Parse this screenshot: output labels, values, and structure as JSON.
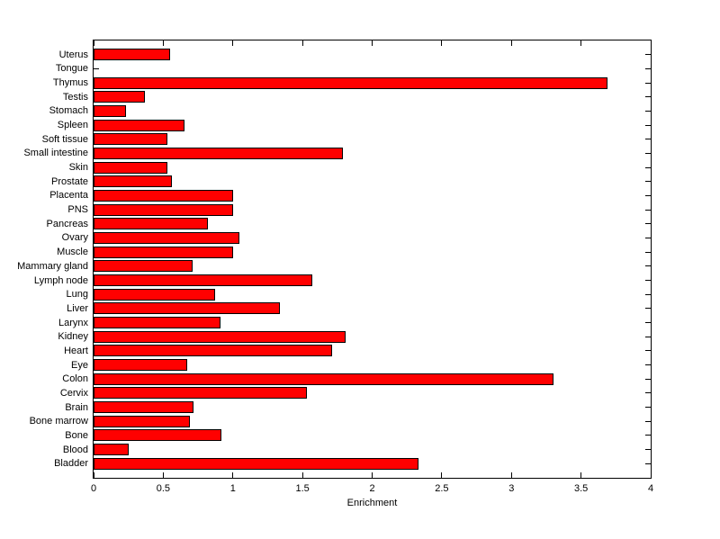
{
  "chart_data": {
    "type": "bar",
    "orientation": "horizontal",
    "title": "",
    "xlabel": "Enrichment",
    "ylabel": "",
    "xlim": [
      0,
      4
    ],
    "xticks": [
      0,
      0.5,
      1,
      1.5,
      2,
      2.5,
      3,
      3.5,
      4
    ],
    "xtick_labels": [
      "0",
      "0.5",
      "1",
      "1.5",
      "2",
      "2.5",
      "3",
      "3.5",
      "4"
    ],
    "categories": [
      "Uterus",
      "Tongue",
      "Thymus",
      "Testis",
      "Stomach",
      "Spleen",
      "Soft tissue",
      "Small intestine",
      "Skin",
      "Prostate",
      "Placenta",
      "PNS",
      "Pancreas",
      "Ovary",
      "Muscle",
      "Mammary gland",
      "Lymph node",
      "Lung",
      "Liver",
      "Larynx",
      "Kidney",
      "Heart",
      "Eye",
      "Colon",
      "Cervix",
      "Brain",
      "Bone marrow",
      "Bone",
      "Blood",
      "Bladder"
    ],
    "values": [
      0.55,
      0.01,
      3.69,
      0.37,
      0.23,
      0.65,
      0.53,
      1.79,
      0.53,
      0.56,
      1.0,
      1.0,
      0.82,
      1.05,
      1.0,
      0.71,
      1.57,
      0.87,
      1.34,
      0.91,
      1.81,
      1.71,
      0.67,
      3.3,
      1.53,
      0.72,
      0.69,
      0.92,
      0.25,
      2.33
    ],
    "grid": false,
    "legend": "none",
    "bar_color": "#FF0000",
    "bar_edge_color": "#000000",
    "axis_color": "#000000",
    "background_color": "#FFFFFF"
  }
}
